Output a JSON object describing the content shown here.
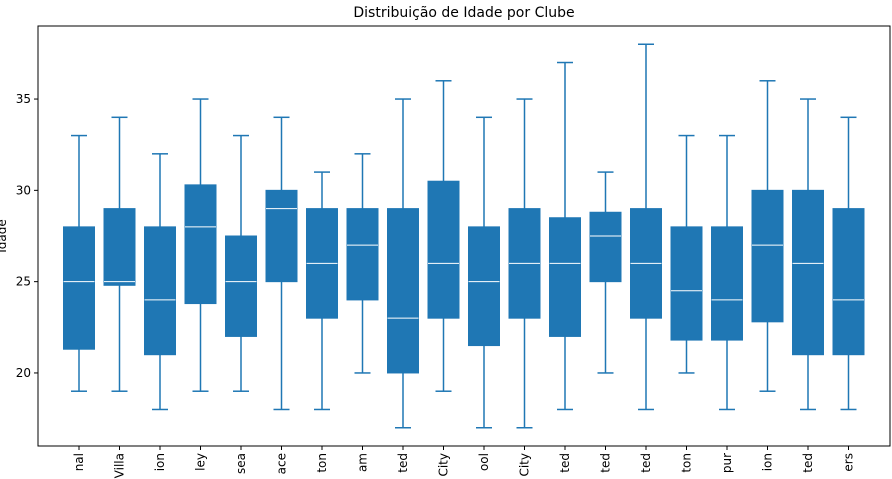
{
  "chart_data": {
    "type": "boxplot",
    "title": "Distribuição de Idade por Clube",
    "ylabel": "Idade",
    "xlabel": "",
    "ylim": [
      16,
      39
    ],
    "yticks": [
      20,
      25,
      30,
      35
    ],
    "grid": false,
    "box_color": "#1f77b4",
    "median_color": "#ffffff",
    "categories": [
      "nal",
      "Villa",
      "ion",
      "ley",
      "sea",
      "ace",
      "ton",
      "am",
      "ted",
      "City",
      "ool",
      "City",
      "ted",
      "ted",
      "ted",
      "ton",
      "pur",
      "ion",
      "ted",
      "ers"
    ],
    "boxes": [
      {
        "whislo": 19,
        "q1": 21.3,
        "med": 25,
        "q3": 28,
        "whishi": 33
      },
      {
        "whislo": 19,
        "q1": 24.8,
        "med": 25,
        "q3": 29,
        "whishi": 34
      },
      {
        "whislo": 18,
        "q1": 21,
        "med": 24,
        "q3": 28,
        "whishi": 32
      },
      {
        "whislo": 19,
        "q1": 23.8,
        "med": 28,
        "q3": 30.3,
        "whishi": 35
      },
      {
        "whislo": 19,
        "q1": 22,
        "med": 25,
        "q3": 27.5,
        "whishi": 33
      },
      {
        "whislo": 18,
        "q1": 25,
        "med": 29,
        "q3": 30,
        "whishi": 34
      },
      {
        "whislo": 18,
        "q1": 23,
        "med": 26,
        "q3": 29,
        "whishi": 31
      },
      {
        "whislo": 20,
        "q1": 24,
        "med": 27,
        "q3": 29,
        "whishi": 32
      },
      {
        "whislo": 17,
        "q1": 20,
        "med": 23,
        "q3": 29,
        "whishi": 35
      },
      {
        "whislo": 19,
        "q1": 23,
        "med": 26,
        "q3": 30.5,
        "whishi": 36
      },
      {
        "whislo": 17,
        "q1": 21.5,
        "med": 25,
        "q3": 28,
        "whishi": 34
      },
      {
        "whislo": 17,
        "q1": 23,
        "med": 26,
        "q3": 29,
        "whishi": 35
      },
      {
        "whislo": 18,
        "q1": 22,
        "med": 26,
        "q3": 28.5,
        "whishi": 37
      },
      {
        "whislo": 20,
        "q1": 25,
        "med": 27.5,
        "q3": 28.8,
        "whishi": 31
      },
      {
        "whislo": 18,
        "q1": 23,
        "med": 26,
        "q3": 29,
        "whishi": 38
      },
      {
        "whislo": 20,
        "q1": 21.8,
        "med": 24.5,
        "q3": 28,
        "whishi": 33
      },
      {
        "whislo": 18,
        "q1": 21.8,
        "med": 24,
        "q3": 28,
        "whishi": 33
      },
      {
        "whislo": 19,
        "q1": 22.8,
        "med": 27,
        "q3": 30,
        "whishi": 36
      },
      {
        "whislo": 18,
        "q1": 21,
        "med": 26,
        "q3": 30,
        "whishi": 35
      },
      {
        "whislo": 18,
        "q1": 21,
        "med": 24,
        "q3": 29,
        "whishi": 34
      }
    ]
  }
}
